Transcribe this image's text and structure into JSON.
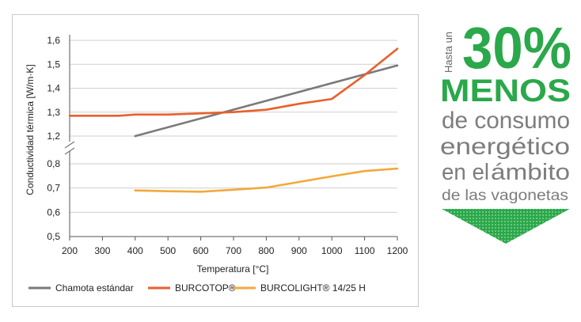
{
  "chart_data": {
    "type": "line",
    "title": "",
    "xlabel": "Temperatura [°C]",
    "ylabel": "Conductividad térmica [W/m·K]",
    "xlim": [
      200,
      1200
    ],
    "x_ticks": [
      "200",
      "300",
      "400",
      "500",
      "600",
      "700",
      "800",
      "900",
      "1000",
      "1100",
      "1200"
    ],
    "y_ticks": [
      "0,5",
      "0,6",
      "0,7",
      "0,8",
      "1,2",
      "1,3",
      "1,4",
      "1,5",
      "1,6"
    ],
    "axis_break": {
      "lower": [
        0.5,
        0.8
      ],
      "upper": [
        1.2,
        1.6
      ]
    },
    "grid": "horizontal",
    "legend_position": "bottom",
    "series": [
      {
        "name": "Chamota estándar",
        "color": "#7a7a7a",
        "x": [
          400,
          1200
        ],
        "y": [
          1.2,
          1.495
        ]
      },
      {
        "name": "BURCOTOP®",
        "color": "#e8602c",
        "x": [
          200,
          350,
          400,
          500,
          600,
          700,
          800,
          900,
          1000,
          1100,
          1200
        ],
        "y": [
          1.285,
          1.285,
          1.29,
          1.29,
          1.295,
          1.3,
          1.31,
          1.335,
          1.355,
          1.455,
          1.565
        ]
      },
      {
        "name": "BURCOLIGHT® 14/25 H",
        "color": "#f2a93b",
        "x": [
          400,
          500,
          600,
          700,
          800,
          900,
          1000,
          1100,
          1200
        ],
        "y": [
          0.69,
          0.687,
          0.685,
          0.693,
          0.702,
          0.725,
          0.748,
          0.77,
          0.78
        ]
      }
    ]
  },
  "promo": {
    "prefix": "Hasta un",
    "percent": "30%",
    "menos": "MENOS",
    "line1": "de consumo",
    "line2": "energético",
    "line3a": "en el",
    "line3b": "ámbito",
    "line4": "de las vagonetas",
    "green": "#2aa84a",
    "grey": "#7d7d7d"
  }
}
